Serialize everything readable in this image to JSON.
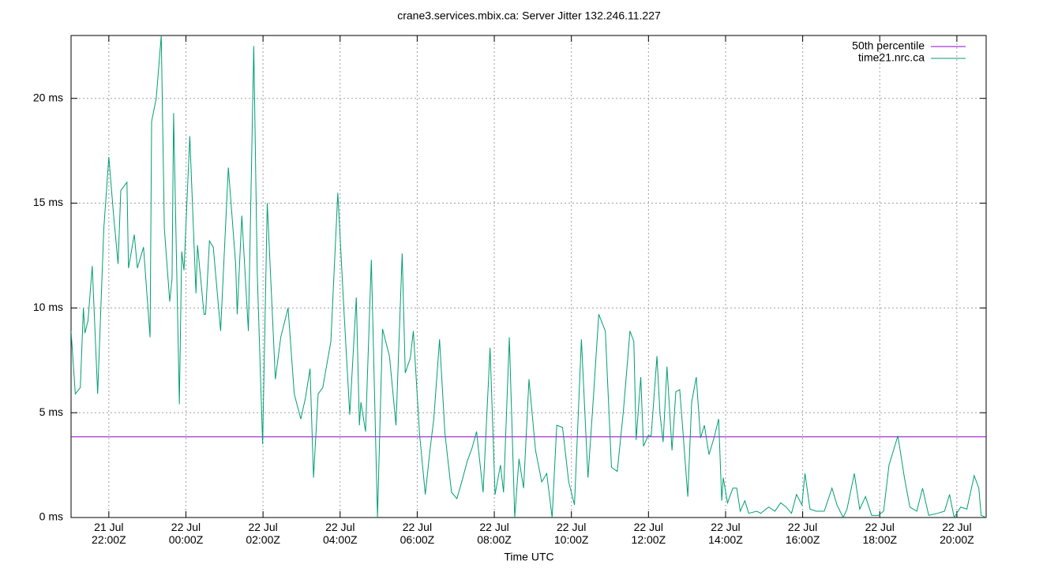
{
  "chart_data": {
    "type": "line",
    "title": "crane3.services.mbix.ca: Server Jitter 132.246.11.227",
    "x_label": "Time UTC",
    "xlim": [
      21.02,
      44.76
    ],
    "ylim": [
      0,
      23
    ],
    "xticks": [
      {
        "value": 22,
        "label": "21 Jul\n22:00Z"
      },
      {
        "value": 24,
        "label": "22 Jul\n00:00Z"
      },
      {
        "value": 26,
        "label": "22 Jul\n02:00Z"
      },
      {
        "value": 28,
        "label": "22 Jul\n04:00Z"
      },
      {
        "value": 30,
        "label": "22 Jul\n06:00Z"
      },
      {
        "value": 32,
        "label": "22 Jul\n08:00Z"
      },
      {
        "value": 34,
        "label": "22 Jul\n10:00Z"
      },
      {
        "value": 36,
        "label": "22 Jul\n12:00Z"
      },
      {
        "value": 38,
        "label": "22 Jul\n14:00Z"
      },
      {
        "value": 40,
        "label": "22 Jul\n16:00Z"
      },
      {
        "value": 42,
        "label": "22 Jul\n18:00Z"
      },
      {
        "value": 44,
        "label": "22 Jul\n20:00Z"
      }
    ],
    "yticks": [
      {
        "value": 0,
        "label": "0 ms"
      },
      {
        "value": 5,
        "label": "5 ms"
      },
      {
        "value": 10,
        "label": "10 ms"
      },
      {
        "value": 15,
        "label": "15 ms"
      },
      {
        "value": 20,
        "label": "20 ms"
      }
    ],
    "grid": true,
    "legend": "top-right",
    "series": [
      {
        "name": "50th percentile",
        "color": "#9400d3",
        "x": [
          21.02,
          44.76
        ],
        "values": [
          3.85,
          3.85
        ]
      },
      {
        "name": "time21.nrc.ca",
        "color": "#009e73",
        "x": [
          21.02,
          21.13,
          21.26,
          21.34,
          21.38,
          21.46,
          21.57,
          21.71,
          21.87,
          22.0,
          22.12,
          22.24,
          22.31,
          22.47,
          22.51,
          22.66,
          22.74,
          22.9,
          23.07,
          23.11,
          23.23,
          23.36,
          23.44,
          23.58,
          23.64,
          23.68,
          23.83,
          23.89,
          23.95,
          24.1,
          24.26,
          24.3,
          24.47,
          24.51,
          24.61,
          24.71,
          24.9,
          25.1,
          25.29,
          25.33,
          25.45,
          25.62,
          25.76,
          25.85,
          25.99,
          26.11,
          26.32,
          26.46,
          26.65,
          26.81,
          26.98,
          27.1,
          27.22,
          27.31,
          27.43,
          27.55,
          27.76,
          27.94,
          28.09,
          28.25,
          28.42,
          28.5,
          28.54,
          28.66,
          28.81,
          28.97,
          29.1,
          29.28,
          29.45,
          29.61,
          29.69,
          29.82,
          29.9,
          30.06,
          30.21,
          30.33,
          30.43,
          30.58,
          30.72,
          30.89,
          31.03,
          31.17,
          31.3,
          31.42,
          31.54,
          31.71,
          31.89,
          32.02,
          32.16,
          32.24,
          32.39,
          32.53,
          32.64,
          32.76,
          32.9,
          33.07,
          33.23,
          33.36,
          33.5,
          33.62,
          33.77,
          33.93,
          34.08,
          34.26,
          34.43,
          34.57,
          34.71,
          34.88,
          35.04,
          35.19,
          35.35,
          35.52,
          35.62,
          35.68,
          35.8,
          35.87,
          35.99,
          36.07,
          36.22,
          36.3,
          36.38,
          36.48,
          36.61,
          36.71,
          36.81,
          36.89,
          37.02,
          37.12,
          37.24,
          37.35,
          37.45,
          37.57,
          37.7,
          37.82,
          37.9,
          37.94,
          38.05,
          38.19,
          38.29,
          38.38,
          38.5,
          38.6,
          38.81,
          38.91,
          39.12,
          39.28,
          39.43,
          39.57,
          39.71,
          39.84,
          39.98,
          40.06,
          40.19,
          40.35,
          40.56,
          40.76,
          40.89,
          41.05,
          41.15,
          41.34,
          41.48,
          41.63,
          41.79,
          41.96,
          42.1,
          42.24,
          42.47,
          42.64,
          42.78,
          42.96,
          43.11,
          43.27,
          43.5,
          43.68,
          43.81,
          43.93,
          44.1,
          44.26,
          44.45,
          44.57,
          44.63,
          44.76
        ],
        "values": [
          8.9,
          5.9,
          6.2,
          10,
          8.8,
          9.4,
          12,
          5.9,
          13.8,
          17.2,
          14.5,
          12.1,
          15.6,
          16,
          11.9,
          13.5,
          11.9,
          12.9,
          8.6,
          18.9,
          20,
          23,
          13.8,
          10.3,
          11.4,
          19.3,
          5.4,
          12.7,
          11.8,
          18.2,
          10.7,
          13,
          9.7,
          9.7,
          13.2,
          12.9,
          8.9,
          16.7,
          12.1,
          9.7,
          14.4,
          8.9,
          22.5,
          11.7,
          3.5,
          15,
          6.6,
          8.6,
          10,
          5.9,
          4.7,
          5.7,
          7.1,
          1.9,
          5.9,
          6.2,
          8.4,
          15.5,
          10.2,
          4.9,
          10.5,
          4.4,
          5.5,
          4.1,
          12.3,
          0,
          9,
          7.7,
          4.4,
          12.6,
          6.9,
          7.6,
          8.9,
          4,
          1.1,
          3.2,
          4.7,
          8.5,
          4,
          1.2,
          0.9,
          1.8,
          2.7,
          3.3,
          4.1,
          1.2,
          8.1,
          1.1,
          2.5,
          1.2,
          8.6,
          0,
          2.8,
          1.4,
          6.6,
          3.2,
          1.7,
          2.1,
          0,
          4.4,
          4.3,
          1.7,
          0.6,
          8.5,
          1.9,
          5.7,
          9.7,
          8.9,
          2.4,
          2.2,
          5.1,
          8.9,
          8.4,
          3.7,
          6.7,
          3.4,
          3.9,
          3.9,
          7.7,
          4.9,
          3.6,
          7.2,
          3.2,
          6,
          6.1,
          4.2,
          1,
          5.5,
          6.7,
          3.8,
          4.4,
          3,
          3.8,
          4.7,
          0.8,
          1.9,
          0.7,
          1.4,
          1.4,
          0.3,
          0.8,
          0.2,
          0.3,
          0.2,
          0.5,
          0.3,
          0.7,
          0.5,
          0.2,
          1.1,
          0.6,
          2.1,
          0.4,
          0.3,
          0.3,
          1.4,
          0.6,
          0,
          0.4,
          2.1,
          0.4,
          1,
          0.1,
          0.1,
          0.3,
          2.5,
          3.9,
          1.9,
          0.5,
          0.3,
          1.4,
          0.1,
          0.2,
          0.3,
          1.1,
          0,
          0.5,
          0.4,
          2,
          1.4,
          0.1,
          0
        ]
      }
    ]
  }
}
